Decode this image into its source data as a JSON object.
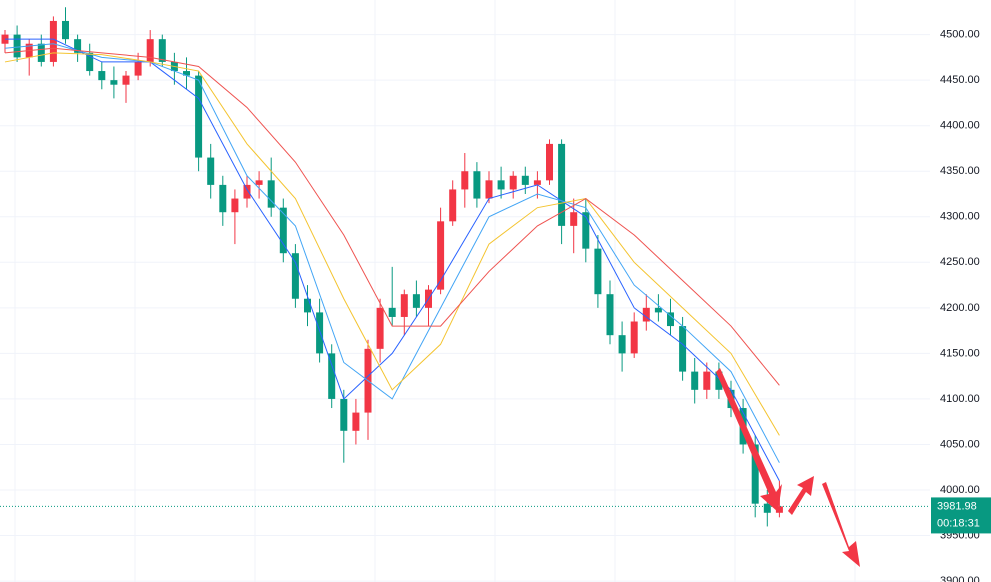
{
  "chart_data": {
    "type": "candlestick",
    "ylim": [
      3899,
      4538
    ],
    "yticks": [
      {
        "value": 4500,
        "label": "4500.00"
      },
      {
        "value": 4450,
        "label": "4450.00"
      },
      {
        "value": 4400,
        "label": "4400.00"
      },
      {
        "value": 4350,
        "label": "4350.00"
      },
      {
        "value": 4300,
        "label": "4300.00"
      },
      {
        "value": 4250,
        "label": "4250.00"
      },
      {
        "value": 4200,
        "label": "4200.00"
      },
      {
        "value": 4150,
        "label": "4150.00"
      },
      {
        "value": 4100,
        "label": "4100.00"
      },
      {
        "value": 4050,
        "label": "4050.00"
      },
      {
        "value": 4000,
        "label": "4000.00"
      },
      {
        "value": 3950,
        "label": "3950.00"
      },
      {
        "value": 3900,
        "label": "3900.00"
      }
    ],
    "grid": true,
    "up_color": "#f23645",
    "down_color": "#089981",
    "candles": [
      [
        4490,
        4505,
        4480,
        4500
      ],
      [
        4500,
        4510,
        4470,
        4475
      ],
      [
        4475,
        4495,
        4455,
        4490
      ],
      [
        4490,
        4500,
        4465,
        4470
      ],
      [
        4470,
        4520,
        4465,
        4515
      ],
      [
        4515,
        4530,
        4490,
        4495
      ],
      [
        4495,
        4500,
        4470,
        4480
      ],
      [
        4480,
        4490,
        4455,
        4460
      ],
      [
        4460,
        4470,
        4440,
        4450
      ],
      [
        4450,
        4465,
        4430,
        4445
      ],
      [
        4445,
        4460,
        4425,
        4455
      ],
      [
        4455,
        4480,
        4450,
        4470
      ],
      [
        4470,
        4505,
        4465,
        4495
      ],
      [
        4495,
        4500,
        4465,
        4470
      ],
      [
        4470,
        4480,
        4445,
        4460
      ],
      [
        4460,
        4475,
        4440,
        4455
      ],
      [
        4455,
        4460,
        4350,
        4365
      ],
      [
        4365,
        4380,
        4320,
        4335
      ],
      [
        4335,
        4345,
        4290,
        4305
      ],
      [
        4305,
        4330,
        4270,
        4320
      ],
      [
        4320,
        4345,
        4310,
        4335
      ],
      [
        4335,
        4350,
        4320,
        4340
      ],
      [
        4340,
        4365,
        4300,
        4310
      ],
      [
        4310,
        4320,
        4250,
        4260
      ],
      [
        4260,
        4270,
        4200,
        4210
      ],
      [
        4210,
        4225,
        4180,
        4195
      ],
      [
        4195,
        4210,
        4140,
        4150
      ],
      [
        4150,
        4160,
        4090,
        4100
      ],
      [
        4100,
        4110,
        4030,
        4065
      ],
      [
        4065,
        4100,
        4050,
        4085
      ],
      [
        4085,
        4165,
        4055,
        4155
      ],
      [
        4155,
        4210,
        4140,
        4200
      ],
      [
        4200,
        4245,
        4180,
        4190
      ],
      [
        4190,
        4220,
        4170,
        4215
      ],
      [
        4215,
        4230,
        4190,
        4200
      ],
      [
        4200,
        4225,
        4180,
        4220
      ],
      [
        4220,
        4310,
        4215,
        4295
      ],
      [
        4295,
        4340,
        4290,
        4330
      ],
      [
        4330,
        4370,
        4310,
        4350
      ],
      [
        4350,
        4360,
        4310,
        4320
      ],
      [
        4320,
        4350,
        4315,
        4340
      ],
      [
        4340,
        4355,
        4320,
        4330
      ],
      [
        4330,
        4350,
        4320,
        4345
      ],
      [
        4345,
        4355,
        4325,
        4335
      ],
      [
        4335,
        4350,
        4320,
        4340
      ],
      [
        4340,
        4385,
        4335,
        4380
      ],
      [
        4380,
        4385,
        4270,
        4290
      ],
      [
        4290,
        4320,
        4260,
        4305
      ],
      [
        4305,
        4320,
        4250,
        4265
      ],
      [
        4265,
        4280,
        4200,
        4215
      ],
      [
        4215,
        4230,
        4160,
        4170
      ],
      [
        4170,
        4185,
        4130,
        4150
      ],
      [
        4150,
        4195,
        4145,
        4185
      ],
      [
        4185,
        4215,
        4175,
        4200
      ],
      [
        4200,
        4215,
        4185,
        4195
      ],
      [
        4195,
        4210,
        4170,
        4180
      ],
      [
        4180,
        4190,
        4120,
        4130
      ],
      [
        4130,
        4145,
        4095,
        4110
      ],
      [
        4110,
        4140,
        4100,
        4130
      ],
      [
        4130,
        4140,
        4100,
        4110
      ],
      [
        4110,
        4120,
        4080,
        4090
      ],
      [
        4090,
        4100,
        4040,
        4050
      ],
      [
        4050,
        4060,
        3970,
        3985
      ],
      [
        3985,
        4000,
        3960,
        3975
      ],
      [
        3975,
        4010,
        3970,
        3981.98
      ]
    ],
    "ma_x": [
      0,
      4,
      8,
      12,
      16,
      20,
      24,
      28,
      32,
      36,
      40,
      44,
      48,
      52,
      56,
      60,
      64
    ],
    "series": [
      {
        "color": "#2962ff",
        "values": [
          4495,
          4495,
          4470,
          4470,
          4430,
          4330,
          4250,
          4100,
          4150,
          4230,
          4320,
          4335,
          4300,
          4200,
          4160,
          4110,
          4010
        ]
      },
      {
        "color": "#42a5f5",
        "values": [
          4485,
          4490,
          4475,
          4470,
          4450,
          4345,
          4290,
          4140,
          4100,
          4200,
          4300,
          4325,
          4310,
          4225,
          4180,
          4130,
          4030
        ]
      },
      {
        "color": "#f4c430",
        "values": [
          4470,
          4480,
          4478,
          4470,
          4460,
          4380,
          4320,
          4210,
          4110,
          4160,
          4270,
          4310,
          4320,
          4250,
          4200,
          4150,
          4060
        ]
      },
      {
        "color": "#ef5350",
        "values": [
          4480,
          4485,
          4480,
          4475,
          4465,
          4420,
          4360,
          4280,
          4180,
          4180,
          4240,
          4290,
          4320,
          4280,
          4230,
          4180,
          4115
        ]
      }
    ],
    "last_price": {
      "value": 3981.98,
      "label": "3981.98"
    },
    "countdown": "00:18:31"
  }
}
